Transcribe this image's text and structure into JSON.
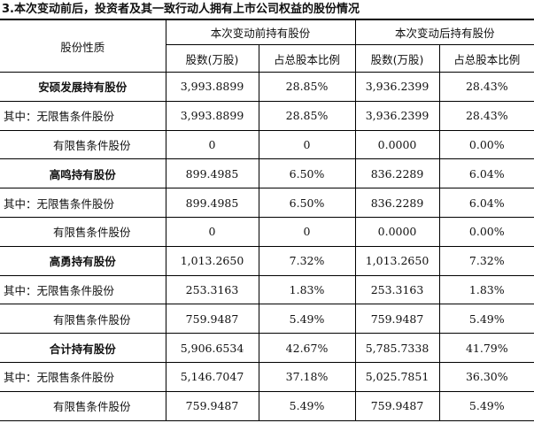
{
  "heading": "3.本次变动前后，投资者及其一致行动人拥有上市公司权益的股份情况",
  "header": {
    "nature": "股份性质",
    "before": "本次变动前持有股份",
    "after": "本次变动后持有股份",
    "shares": "股数(万股)",
    "ratio": "占总股本比例"
  },
  "rows": [
    {
      "label": "安硕发展持有股份",
      "b_shares": "3,993.8899",
      "b_ratio": "28.85%",
      "a_shares": "3,936.2399",
      "a_ratio": "28.43%"
    },
    {
      "label": "其中：无限售条件股份",
      "b_shares": "3,993.8899",
      "b_ratio": "28.85%",
      "a_shares": "3,936.2399",
      "a_ratio": "28.43%"
    },
    {
      "label": "有限售条件股份",
      "b_shares": "0",
      "b_ratio": "0",
      "a_shares": "0.0000",
      "a_ratio": "0.00%"
    },
    {
      "label": "高鸣持有股份",
      "b_shares": "899.4985",
      "b_ratio": "6.50%",
      "a_shares": "836.2289",
      "a_ratio": "6.04%"
    },
    {
      "label": "其中：无限售条件股份",
      "b_shares": "899.4985",
      "b_ratio": "6.50%",
      "a_shares": "836.2289",
      "a_ratio": "6.04%"
    },
    {
      "label": "有限售条件股份",
      "b_shares": "0",
      "b_ratio": "0",
      "a_shares": "0.0000",
      "a_ratio": "0.00%"
    },
    {
      "label": "高勇持有股份",
      "b_shares": "1,013.2650",
      "b_ratio": "7.32%",
      "a_shares": "1,013.2650",
      "a_ratio": "7.32%"
    },
    {
      "label": "其中：无限售条件股份",
      "b_shares": "253.3163",
      "b_ratio": "1.83%",
      "a_shares": "253.3163",
      "a_ratio": "1.83%"
    },
    {
      "label": "有限售条件股份",
      "b_shares": "759.9487",
      "b_ratio": "5.49%",
      "a_shares": "759.9487",
      "a_ratio": "5.49%"
    },
    {
      "label": "合计持有股份",
      "b_shares": "5,906.6534",
      "b_ratio": "42.67%",
      "a_shares": "5,785.7338",
      "a_ratio": "41.79%"
    },
    {
      "label": "其中：无限售条件股份",
      "b_shares": "5,146.7047",
      "b_ratio": "37.18%",
      "a_shares": "5,025.7851",
      "a_ratio": "36.30%"
    },
    {
      "label": "有限售条件股份",
      "b_shares": "759.9487",
      "b_ratio": "5.49%",
      "a_shares": "759.9487",
      "a_ratio": "5.49%"
    }
  ]
}
